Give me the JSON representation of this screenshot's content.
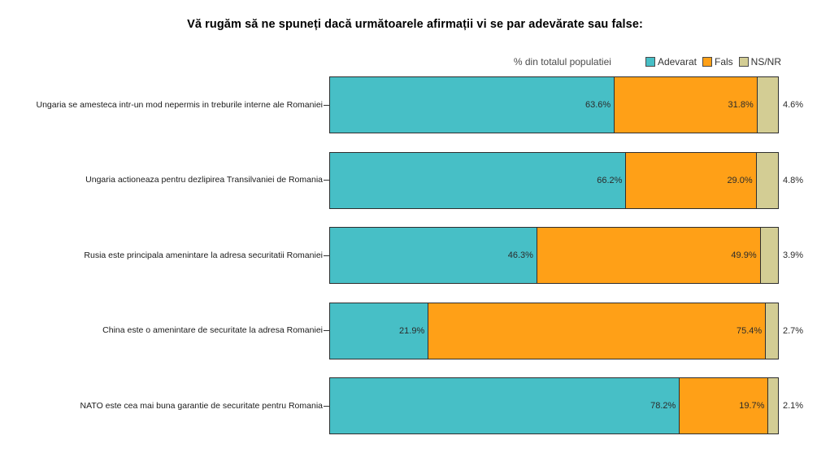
{
  "title": "Vă rugăm să ne spuneți dacă următoarele afirmații vi se par adevărate sau false:",
  "header": {
    "subtitle": "% din totalul populatiei"
  },
  "legend": {
    "position": "top-right",
    "items": [
      {
        "label": "Adevarat",
        "color": "#47BFC6"
      },
      {
        "label": "Fals",
        "color": "#FFA017"
      },
      {
        "label": "NS/NR",
        "color": "#D3CD94"
      }
    ]
  },
  "chart_data": {
    "type": "bar",
    "orientation": "horizontal",
    "stacked": true,
    "unit": "percent",
    "xlim": [
      0,
      100
    ],
    "grid": false,
    "title": "Vă rugăm să ne spuneți dacă următoarele afirmații vi se par adevărate sau false:",
    "xlabel": "% din totalul populatiei",
    "ylabel": "",
    "categories": [
      "Ungaria se amesteca intr-un mod nepermis in treburile interne ale Romaniei",
      "Ungaria actioneaza pentru dezlipirea Transilvaniei de Romania",
      "Rusia este principala amenintare la adresa securitatii Romaniei",
      "China este o amenintare de securitate la adresa Romaniei",
      "NATO este cea mai buna garantie de securitate pentru Romania"
    ],
    "series": [
      {
        "name": "Adevarat",
        "color": "#47BFC6",
        "values": [
          63.6,
          66.2,
          46.3,
          21.9,
          78.2
        ]
      },
      {
        "name": "Fals",
        "color": "#FFA017",
        "values": [
          31.8,
          29.0,
          49.9,
          75.4,
          19.7
        ]
      },
      {
        "name": "NS/NR",
        "color": "#D3CD94",
        "values": [
          4.6,
          4.8,
          3.9,
          2.7,
          2.1
        ]
      }
    ],
    "value_labels": {
      "format": "one-decimal-percent",
      "inside_series": [
        "Adevarat",
        "Fals"
      ],
      "outside_series": [
        "NS/NR"
      ]
    }
  }
}
